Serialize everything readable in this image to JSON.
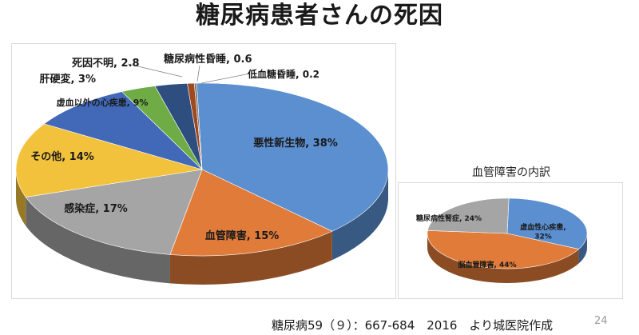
{
  "title": "糖尿病患者さんの死因",
  "citation": "糖尿病59（９）：667-684　2016　より城医院作成",
  "page_number": "24",
  "chart_data": [
    {
      "type": "pie",
      "title": "",
      "categories": [
        "悪性新生物",
        "血管障害",
        "感染症",
        "その他",
        "虚血以外の心疾患",
        "肝硬変",
        "死因不明",
        "糖尿病性昏睡",
        "低血糖昏睡"
      ],
      "values": [
        38,
        15,
        17,
        14,
        9,
        3,
        2.8,
        0.6,
        0.2
      ],
      "labels": [
        "悪性新生物, 38%",
        "血管障害, 15%",
        "感染症, 17%",
        "その他, 14%",
        "虚血以外の心疾患, 9%",
        "肝硬変, 3%",
        "死因不明, 2.8",
        "糖尿病性昏睡, 0.6",
        "低血糖昏睡, 0.2"
      ],
      "colors": [
        "#5b8fd0",
        "#e07b39",
        "#a5a5a5",
        "#f2c23c",
        "#4169b8",
        "#6fac46",
        "#2e4e80",
        "#a0481e",
        "#7a7a7a"
      ]
    },
    {
      "type": "pie",
      "title": "血管障害の内訳",
      "categories": [
        "虚血性心疾患",
        "脳血管障害",
        "糖尿病性腎症"
      ],
      "values": [
        32,
        44,
        24
      ],
      "labels": [
        "虚血性心疾患,\n32%",
        "脳血管障害, 44%",
        "糖尿病性腎症, 24%"
      ],
      "colors": [
        "#5b8fd0",
        "#e07b39",
        "#a5a5a5"
      ]
    }
  ]
}
